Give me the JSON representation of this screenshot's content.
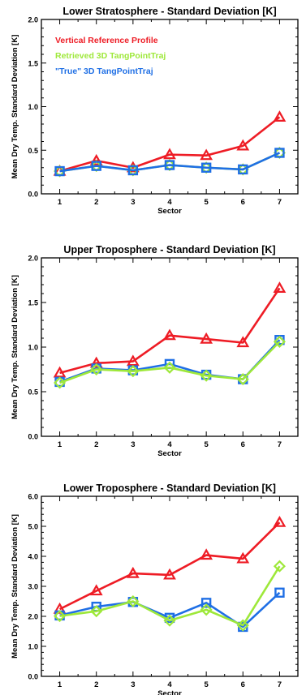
{
  "colors": {
    "red": "#ee1c25",
    "green": "#9ee83a",
    "blue": "#1f6fe5",
    "axis": "#000000"
  },
  "chart_data": [
    {
      "type": "line",
      "title": "Lower Stratosphere - Standard Deviation [K]",
      "xlabel": "Sector",
      "ylabel": "Mean Dry Temp. Standard Deviation [K]",
      "categories": [
        1,
        2,
        3,
        4,
        5,
        6,
        7
      ],
      "xlim": [
        0.5,
        7.5
      ],
      "ylim": [
        0.0,
        2.0
      ],
      "yticks": [
        "0.0",
        "0.5",
        "1.0",
        "1.5",
        "2.0"
      ],
      "legend_position": "top-left",
      "series": [
        {
          "name": "Vertical Reference Profile",
          "color": "red",
          "marker": "triangle",
          "values": [
            0.26,
            0.38,
            0.3,
            0.45,
            0.44,
            0.55,
            0.88
          ]
        },
        {
          "name": "Retrieved 3D TangPointTraj",
          "color": "green",
          "marker": "diamond",
          "values": [
            0.26,
            0.32,
            0.27,
            0.33,
            0.3,
            0.28,
            0.47
          ]
        },
        {
          "name": "\"True\" 3D TangPointTraj",
          "color": "blue",
          "marker": "square",
          "values": [
            0.26,
            0.32,
            0.27,
            0.33,
            0.3,
            0.28,
            0.47
          ]
        }
      ]
    },
    {
      "type": "line",
      "title": "Upper Troposphere - Standard Deviation [K]",
      "xlabel": "Sector",
      "ylabel": "Mean Dry Temp. Standard Deviation [K]",
      "categories": [
        1,
        2,
        3,
        4,
        5,
        6,
        7
      ],
      "xlim": [
        0.5,
        7.5
      ],
      "ylim": [
        0.0,
        2.0
      ],
      "yticks": [
        "0.0",
        "0.5",
        "1.0",
        "1.5",
        "2.0"
      ],
      "series": [
        {
          "color": "red",
          "marker": "triangle",
          "values": [
            0.71,
            0.82,
            0.84,
            1.13,
            1.09,
            1.05,
            1.66
          ]
        },
        {
          "color": "blue",
          "marker": "square",
          "values": [
            0.61,
            0.76,
            0.74,
            0.81,
            0.69,
            0.64,
            1.08
          ]
        },
        {
          "color": "green",
          "marker": "diamond",
          "values": [
            0.6,
            0.75,
            0.73,
            0.77,
            0.68,
            0.64,
            1.06
          ]
        }
      ]
    },
    {
      "type": "line",
      "title": "Lower Troposphere - Standard Deviation [K]",
      "xlabel": "Sector",
      "ylabel": "Mean Dry Temp. Standard Deviation [K]",
      "categories": [
        1,
        2,
        3,
        4,
        5,
        6,
        7
      ],
      "xlim": [
        0.5,
        7.5
      ],
      "ylim": [
        0.0,
        6.0
      ],
      "yticks": [
        "0.0",
        "1.0",
        "2.0",
        "3.0",
        "4.0",
        "5.0",
        "6.0"
      ],
      "series": [
        {
          "color": "red",
          "marker": "triangle",
          "values": [
            2.24,
            2.85,
            3.43,
            3.38,
            4.04,
            3.92,
            5.13
          ]
        },
        {
          "color": "blue",
          "marker": "square",
          "values": [
            2.03,
            2.32,
            2.48,
            1.95,
            2.45,
            1.65,
            2.79
          ]
        },
        {
          "color": "green",
          "marker": "diamond",
          "values": [
            2.01,
            2.17,
            2.5,
            1.86,
            2.22,
            1.7,
            3.67
          ]
        }
      ]
    }
  ]
}
